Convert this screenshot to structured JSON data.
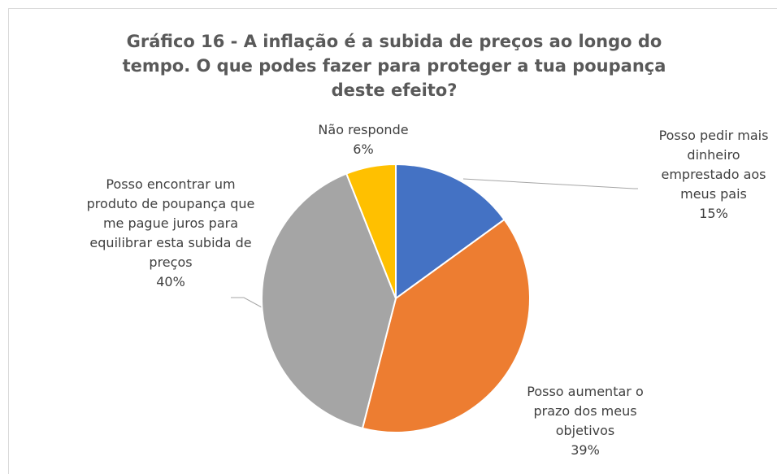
{
  "chart_data": {
    "type": "pie",
    "title": "Gráfico 16 - A inflação é a subida de preços ao longo do tempo. O que podes fazer para proteger a tua poupança deste efeito?",
    "categories": [
      "Posso pedir mais dinheiro emprestado aos meus pais",
      "Posso aumentar o prazo dos meus objetivos",
      "Posso encontrar um produto de poupança que me pague juros para equilibrar esta subida de preços",
      "Não responde"
    ],
    "values": [
      15,
      39,
      40,
      6
    ],
    "value_labels": [
      "15%",
      "39%",
      "40%",
      "6%"
    ],
    "colors": [
      "#4472c4",
      "#ed7d31",
      "#a5a5a5",
      "#ffc000"
    ]
  }
}
